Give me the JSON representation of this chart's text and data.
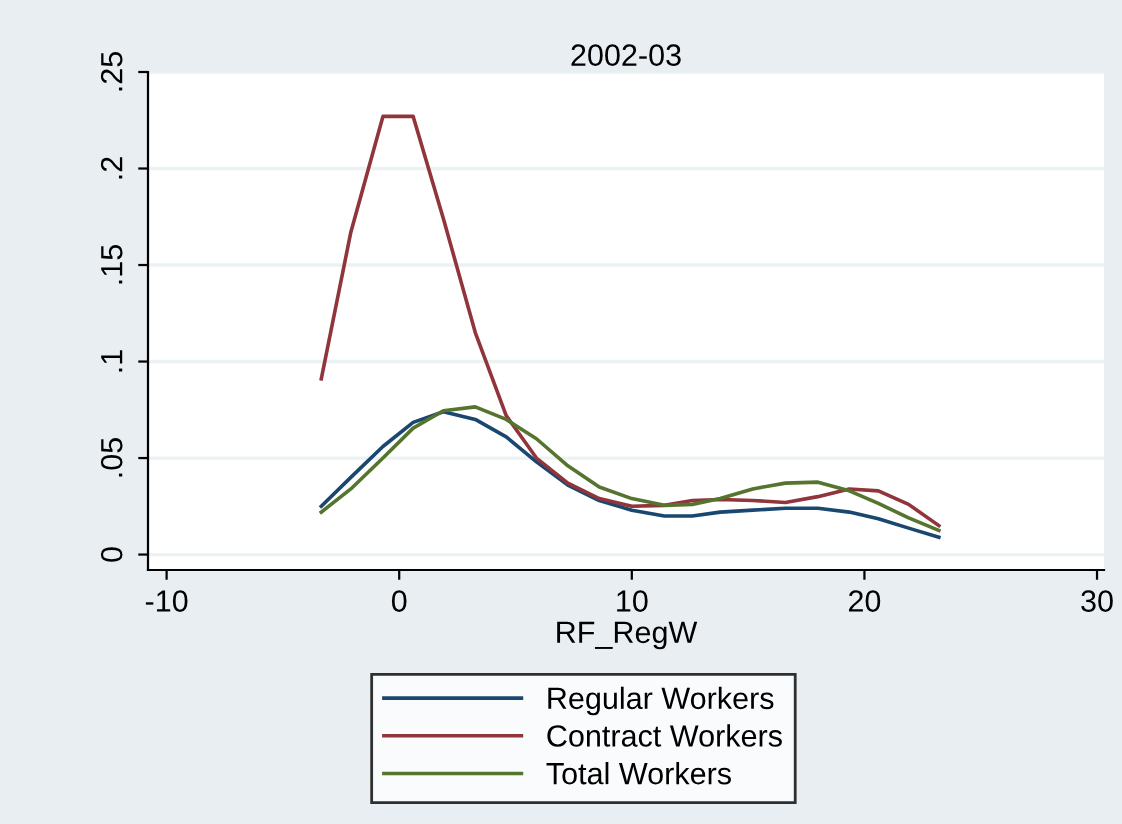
{
  "chart_data": {
    "type": "line",
    "title": "2002-03",
    "xlabel": "RF_RegW",
    "x": [
      -3.35,
      -2.08,
      -0.7,
      0.6,
      1.9,
      3.27,
      4.6,
      5.9,
      7.25,
      8.6,
      10,
      11.4,
      12.6,
      13.8,
      15.2,
      16.6,
      18,
      19.35,
      20.6,
      21.9,
      23.2
    ],
    "series": [
      {
        "name": "Regular Workers",
        "color": "#1a476f",
        "values": [
          0.025,
          0.04,
          0.056,
          0.0685,
          0.074,
          0.07,
          0.061,
          0.048,
          0.036,
          0.028,
          0.023,
          0.02,
          0.02,
          0.022,
          0.023,
          0.024,
          0.024,
          0.022,
          0.0185,
          0.0137,
          0.009
        ]
      },
      {
        "name": "Contract Workers",
        "color": "#90353b",
        "values": [
          0.091,
          0.167,
          0.227,
          0.227,
          0.174,
          0.115,
          0.072,
          0.05,
          0.037,
          0.029,
          0.025,
          0.0255,
          0.028,
          0.0285,
          0.028,
          0.027,
          0.03,
          0.034,
          0.033,
          0.026,
          0.015
        ]
      },
      {
        "name": "Total Workers",
        "color": "#55752f",
        "values": [
          0.022,
          0.034,
          0.05,
          0.0655,
          0.0745,
          0.0765,
          0.07,
          0.06,
          0.046,
          0.035,
          0.029,
          0.0255,
          0.026,
          0.029,
          0.034,
          0.037,
          0.0375,
          0.033,
          0.0265,
          0.019,
          0.0125
        ]
      }
    ],
    "xlim": [
      -10.8,
      30.3
    ],
    "xticks": [
      -10,
      0,
      10,
      20,
      30
    ],
    "ylim": [
      -0.008,
      0.25
    ],
    "yticks": [
      {
        "value": 0,
        "label": "0"
      },
      {
        "value": 0.05,
        "label": ".05"
      },
      {
        "value": 0.1,
        "label": ".1"
      },
      {
        "value": 0.15,
        "label": ".15"
      },
      {
        "value": 0.2,
        "label": ".2"
      },
      {
        "value": 0.25,
        "label": ".25"
      }
    ],
    "grid": "y",
    "legend": "bottom",
    "marker": "none",
    "line_style": "solid"
  }
}
